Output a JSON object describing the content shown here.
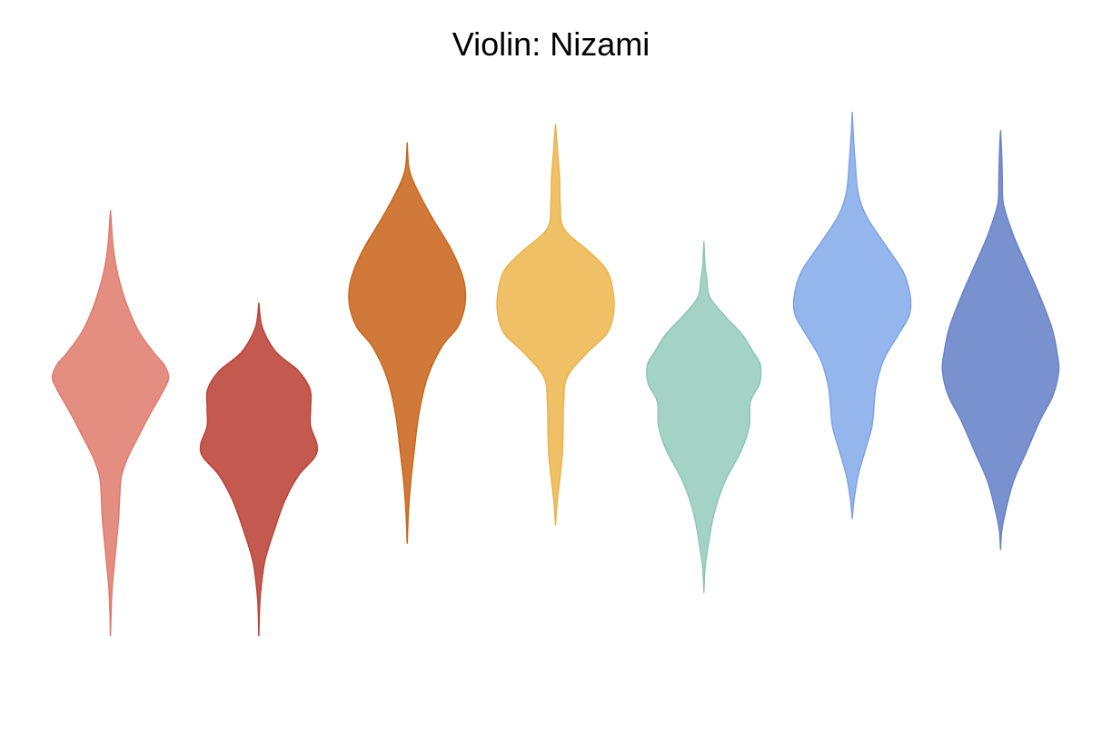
{
  "chart_data": {
    "type": "violin",
    "title": "Violin: Nizami",
    "xlabel": "",
    "ylabel": "",
    "axes_visible": false,
    "grid": false,
    "legend": "none",
    "ylim": [
      0,
      1
    ],
    "series": [
      {
        "color": "#e48e81",
        "stroke": "#de7b6d",
        "min": 0.38,
        "max": 1.07,
        "profile": [
          [
            1.07,
            0.0
          ],
          [
            1.0,
            0.06
          ],
          [
            0.94,
            0.2
          ],
          [
            0.88,
            0.45
          ],
          [
            0.84,
            0.74
          ],
          [
            0.82,
            0.92
          ],
          [
            0.8,
            1.0
          ],
          [
            0.78,
            0.92
          ],
          [
            0.74,
            0.68
          ],
          [
            0.7,
            0.46
          ],
          [
            0.67,
            0.3
          ],
          [
            0.64,
            0.19
          ],
          [
            0.61,
            0.16
          ],
          [
            0.57,
            0.14
          ],
          [
            0.54,
            0.11
          ],
          [
            0.5,
            0.07
          ],
          [
            0.46,
            0.03
          ],
          [
            0.42,
            0.01
          ],
          [
            0.38,
            0.0
          ]
        ]
      },
      {
        "color": "#c45a4f",
        "stroke": "#b8443a",
        "min": 0.38,
        "max": 0.92,
        "profile": [
          [
            0.92,
            0.0
          ],
          [
            0.88,
            0.06
          ],
          [
            0.84,
            0.3
          ],
          [
            0.81,
            0.68
          ],
          [
            0.78,
            0.88
          ],
          [
            0.75,
            0.89
          ],
          [
            0.72,
            0.89
          ],
          [
            0.69,
            1.0
          ],
          [
            0.67,
            0.96
          ],
          [
            0.64,
            0.68
          ],
          [
            0.6,
            0.45
          ],
          [
            0.55,
            0.26
          ],
          [
            0.5,
            0.1
          ],
          [
            0.45,
            0.03
          ],
          [
            0.42,
            0.01
          ],
          [
            0.38,
            0.0
          ]
        ]
      },
      {
        "color": "#d1793a",
        "stroke": "#c6681f",
        "min": 0.53,
        "max": 1.18,
        "profile": [
          [
            1.18,
            0.0
          ],
          [
            1.14,
            0.03
          ],
          [
            1.11,
            0.14
          ],
          [
            1.06,
            0.42
          ],
          [
            1.01,
            0.74
          ],
          [
            0.97,
            0.93
          ],
          [
            0.94,
            1.0
          ],
          [
            0.91,
            0.98
          ],
          [
            0.88,
            0.86
          ],
          [
            0.85,
            0.6
          ],
          [
            0.8,
            0.35
          ],
          [
            0.74,
            0.2
          ],
          [
            0.68,
            0.12
          ],
          [
            0.63,
            0.06
          ],
          [
            0.58,
            0.02
          ],
          [
            0.53,
            0.0
          ]
        ]
      },
      {
        "color": "#f0c066",
        "stroke": "#eab24e",
        "min": 0.56,
        "max": 1.21,
        "profile": [
          [
            1.21,
            0.0
          ],
          [
            1.16,
            0.04
          ],
          [
            1.12,
            0.07
          ],
          [
            1.08,
            0.08
          ],
          [
            1.04,
            0.15
          ],
          [
            1.0,
            0.62
          ],
          [
            0.97,
            0.9
          ],
          [
            0.93,
            1.0
          ],
          [
            0.9,
            0.99
          ],
          [
            0.87,
            0.88
          ],
          [
            0.84,
            0.55
          ],
          [
            0.8,
            0.2
          ],
          [
            0.76,
            0.14
          ],
          [
            0.72,
            0.13
          ],
          [
            0.68,
            0.12
          ],
          [
            0.64,
            0.08
          ],
          [
            0.6,
            0.03
          ],
          [
            0.56,
            0.0
          ]
        ]
      },
      {
        "color": "#a4d3c6",
        "stroke": "#8cc7b6",
        "min": 0.45,
        "max": 1.02,
        "profile": [
          [
            1.02,
            0.0
          ],
          [
            0.98,
            0.02
          ],
          [
            0.96,
            0.05
          ],
          [
            0.93,
            0.1
          ],
          [
            0.9,
            0.35
          ],
          [
            0.87,
            0.65
          ],
          [
            0.84,
            0.85
          ],
          [
            0.82,
            0.97
          ],
          [
            0.79,
            0.96
          ],
          [
            0.76,
            0.8
          ],
          [
            0.72,
            0.78
          ],
          [
            0.68,
            0.64
          ],
          [
            0.63,
            0.36
          ],
          [
            0.58,
            0.18
          ],
          [
            0.53,
            0.08
          ],
          [
            0.49,
            0.02
          ],
          [
            0.45,
            0.0
          ]
        ]
      },
      {
        "color": "#95b6ec",
        "stroke": "#7ea3e6",
        "min": 0.57,
        "max": 1.23,
        "profile": [
          [
            1.23,
            0.0
          ],
          [
            1.19,
            0.02
          ],
          [
            1.15,
            0.05
          ],
          [
            1.1,
            0.1
          ],
          [
            1.06,
            0.25
          ],
          [
            1.01,
            0.6
          ],
          [
            0.97,
            0.88
          ],
          [
            0.93,
            1.0
          ],
          [
            0.9,
            0.98
          ],
          [
            0.87,
            0.8
          ],
          [
            0.83,
            0.55
          ],
          [
            0.79,
            0.42
          ],
          [
            0.76,
            0.38
          ],
          [
            0.72,
            0.34
          ],
          [
            0.68,
            0.22
          ],
          [
            0.64,
            0.1
          ],
          [
            0.6,
            0.03
          ],
          [
            0.57,
            0.0
          ]
        ]
      },
      {
        "color": "#7a91cf",
        "stroke": "#6a82c8",
        "min": 0.52,
        "max": 1.2,
        "profile": [
          [
            1.2,
            0.0
          ],
          [
            1.16,
            0.02
          ],
          [
            1.12,
            0.03
          ],
          [
            1.08,
            0.05
          ],
          [
            1.03,
            0.22
          ],
          [
            0.98,
            0.45
          ],
          [
            0.93,
            0.68
          ],
          [
            0.88,
            0.88
          ],
          [
            0.84,
            0.97
          ],
          [
            0.81,
            1.0
          ],
          [
            0.77,
            0.9
          ],
          [
            0.73,
            0.68
          ],
          [
            0.68,
            0.45
          ],
          [
            0.63,
            0.22
          ],
          [
            0.58,
            0.08
          ],
          [
            0.55,
            0.02
          ],
          [
            0.52,
            0.0
          ]
        ]
      }
    ]
  }
}
